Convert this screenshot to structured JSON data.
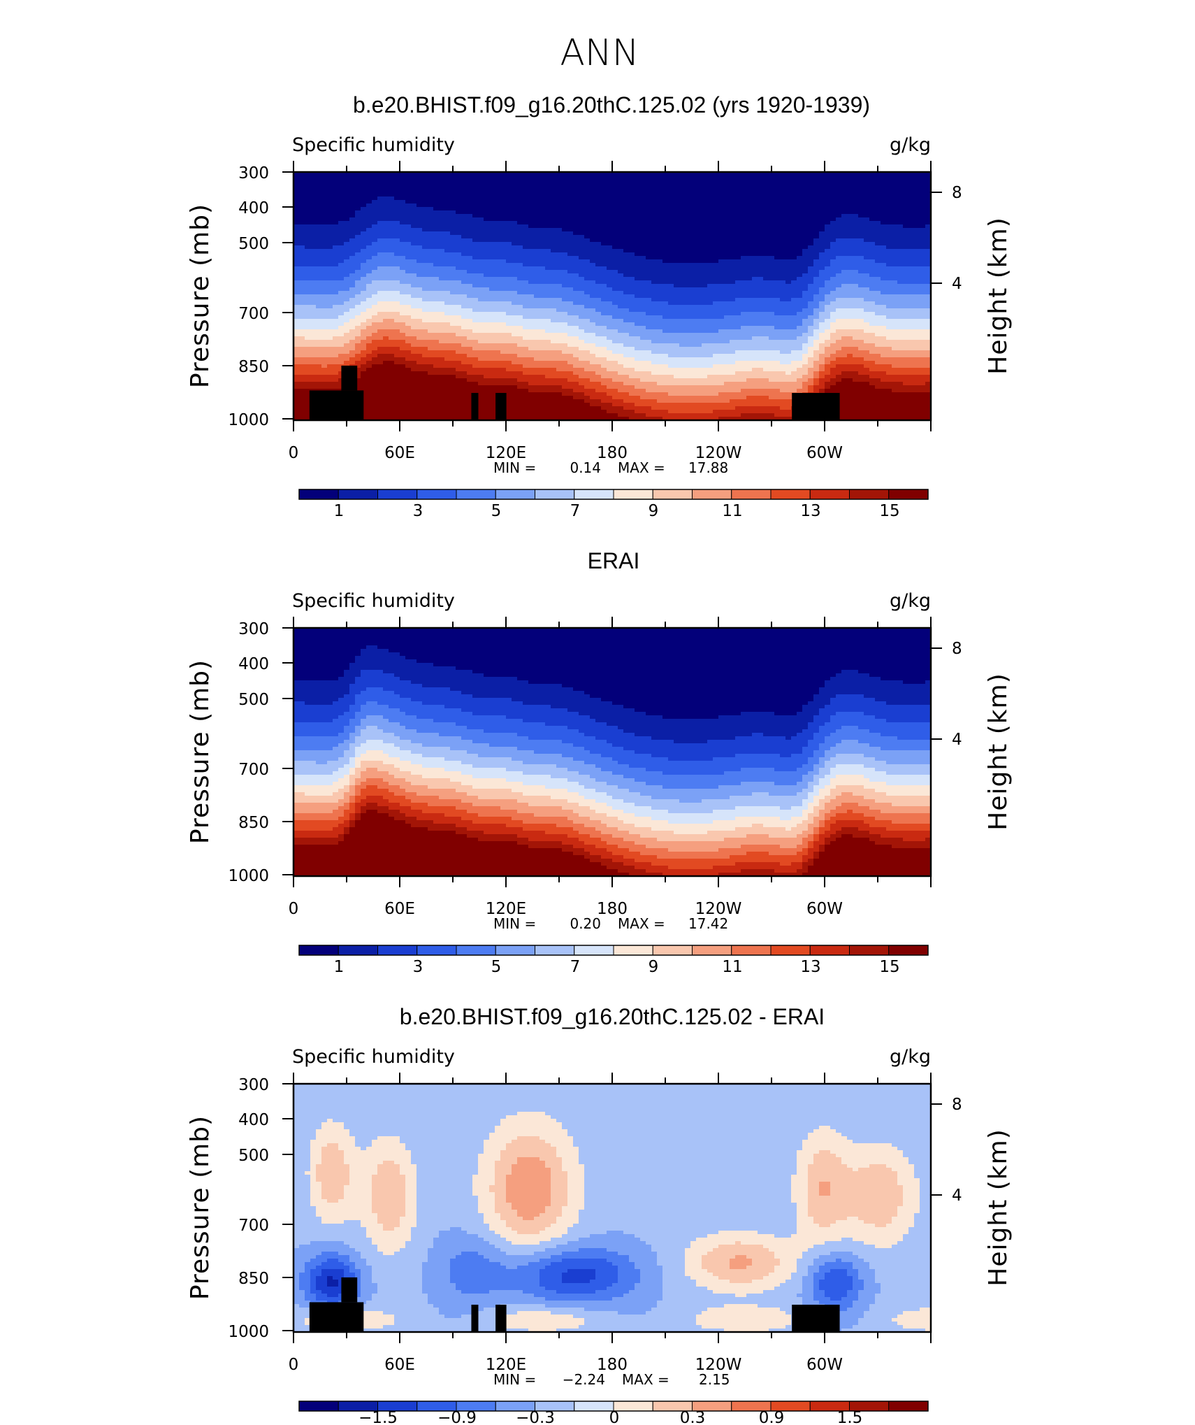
{
  "figure": {
    "title": "ANN"
  },
  "palettes": {
    "abs": [
      "#03007a",
      "#0b1fa6",
      "#1a3ed1",
      "#2f5de8",
      "#4d7cf2",
      "#7ba1f6",
      "#a8c2f8",
      "#d6e4fa",
      "#fbe7d7",
      "#f9c7ae",
      "#f59f7f",
      "#ee744f",
      "#e24a22",
      "#c92a11",
      "#a31507",
      "#800000"
    ],
    "diff": [
      "#03007a",
      "#0b1fa6",
      "#1a3ed1",
      "#2f5de8",
      "#4d7cf2",
      "#7ba1f6",
      "#a8c2f8",
      "#d6e4fa",
      "#fbe7d7",
      "#f9c7ae",
      "#f59f7f",
      "#ee744f",
      "#e24a22",
      "#c92a11",
      "#a31507",
      "#800000"
    ]
  },
  "chart_data": [
    {
      "type": "heatmap",
      "title": "b.e20.BHIST.f09_g16.20thC.125.02 (yrs 1920-1939)",
      "subtitle_left": "Specific humidity",
      "subtitle_right": "g/kg",
      "ylabel": "Pressure (mb)",
      "ylabel_right": "Height (km)",
      "x_ticks": [
        "0",
        "60E",
        "120E",
        "180",
        "120W",
        "60W"
      ],
      "y_ticks": [
        "300",
        "400",
        "500",
        "700",
        "850",
        "1000"
      ],
      "y_right_ticks": [
        "8",
        "4"
      ],
      "stats_min_label": "MIN =",
      "stats_min": "0.14",
      "stats_max_label": "MAX =",
      "stats_max": "17.88",
      "colorbar_labels": [
        "1",
        "3",
        "5",
        "7",
        "9",
        "11",
        "13",
        "15"
      ],
      "palette": "abs",
      "mode": "abs",
      "masked": true
    },
    {
      "type": "heatmap",
      "title": "ERAI",
      "subtitle_left": "Specific humidity",
      "subtitle_right": "g/kg",
      "ylabel": "Pressure (mb)",
      "ylabel_right": "Height (km)",
      "x_ticks": [
        "0",
        "60E",
        "120E",
        "180",
        "120W",
        "60W"
      ],
      "y_ticks": [
        "300",
        "400",
        "500",
        "700",
        "850",
        "1000"
      ],
      "y_right_ticks": [
        "8",
        "4"
      ],
      "stats_min_label": "MIN =",
      "stats_min": "0.20",
      "stats_max_label": "MAX =",
      "stats_max": "17.42",
      "colorbar_labels": [
        "1",
        "3",
        "5",
        "7",
        "9",
        "11",
        "13",
        "15"
      ],
      "palette": "abs",
      "mode": "abs",
      "masked": false
    },
    {
      "type": "heatmap",
      "title": "b.e20.BHIST.f09_g16.20thC.125.02 - ERAI",
      "subtitle_left": "Specific humidity",
      "subtitle_right": "g/kg",
      "ylabel": "Pressure (mb)",
      "ylabel_right": "Height (km)",
      "x_ticks": [
        "0",
        "60E",
        "120E",
        "180",
        "120W",
        "60W"
      ],
      "y_ticks": [
        "300",
        "400",
        "500",
        "700",
        "850",
        "1000"
      ],
      "y_right_ticks": [
        "8",
        "4"
      ],
      "stats_min_label": "MIN =",
      "stats_min": "−2.24",
      "stats_max_label": "MAX =",
      "stats_max": "2.15",
      "colorbar_labels": [
        "−1.5",
        "−0.9",
        "−0.3",
        "0",
        "0.3",
        "0.9",
        "1.5"
      ],
      "palette": "diff",
      "mode": "diff",
      "masked": true
    }
  ]
}
